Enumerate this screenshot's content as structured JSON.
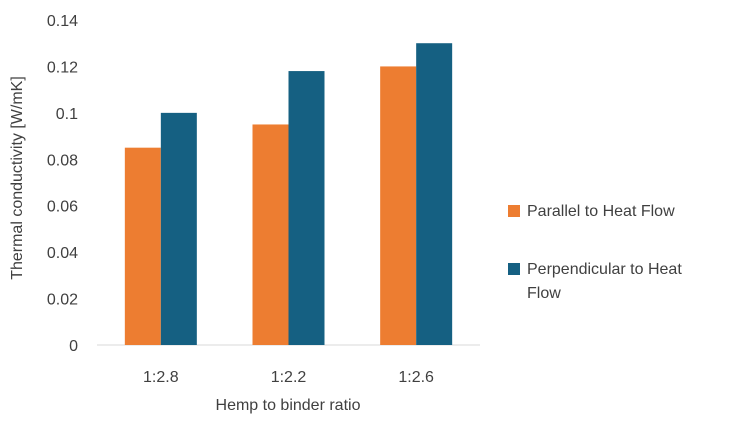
{
  "chart_data": {
    "type": "bar",
    "title": "",
    "xlabel": "Hemp to binder ratio",
    "ylabel": "Thermal conductivity [W/mK]",
    "categories": [
      "1:2.8",
      "1:2.2",
      "1:2.6"
    ],
    "ylim": [
      0,
      0.14
    ],
    "yticks": [
      0,
      0.02,
      0.04,
      0.06,
      0.08,
      0.1,
      0.12,
      0.14
    ],
    "ytick_labels": [
      "0",
      "0.02",
      "0.04",
      "0.06",
      "0.08",
      "0.1",
      "0.12",
      "0.14"
    ],
    "grid": false,
    "legend_position": "right",
    "series": [
      {
        "name": "Parallel to Heat Flow",
        "legend_lines": [
          "Parallel to Heat Flow"
        ],
        "color": "#ED7D31",
        "values": [
          0.085,
          0.095,
          0.12
        ]
      },
      {
        "name": "Perpendicular to Heat Flow",
        "legend_lines": [
          "Perpendicular to Heat",
          "Flow"
        ],
        "color": "#156082",
        "values": [
          0.1,
          0.118,
          0.13
        ]
      }
    ]
  }
}
